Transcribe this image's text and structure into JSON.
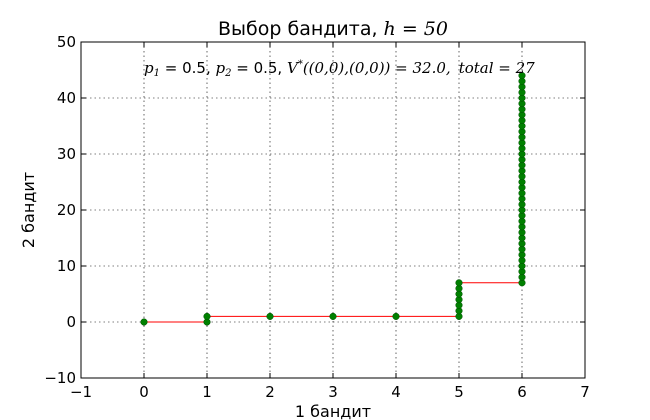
{
  "chart_data": {
    "type": "scatter",
    "title_prefix": "Выбор бандита, ",
    "title_math": "h",
    "title_eq": " = 50",
    "xlabel": "1 бандит",
    "ylabel": "2 бандит",
    "annotation": {
      "p1_sym": "p",
      "p1_sub": "1",
      "p1_val": " = 0.5, ",
      "p2_sym": "p",
      "p2_sub": "2",
      "p2_val": " = 0.5, ",
      "v_part": "V",
      "v_sup": "*",
      "v_args": "((0,0),(0,0)) = 32.0,",
      "total_label": "total",
      "total_eq": " = 27"
    },
    "xlim": [
      -1,
      7
    ],
    "ylim": [
      -10,
      50
    ],
    "xticks": [
      -1,
      0,
      1,
      2,
      3,
      4,
      5,
      6,
      7
    ],
    "yticks": [
      -10,
      0,
      10,
      20,
      30,
      40,
      50
    ],
    "grid": true,
    "colors": {
      "line": "#ff0000",
      "marker": "#008000"
    },
    "path": [
      [
        0,
        0
      ],
      [
        1,
        0
      ],
      [
        1,
        1
      ],
      [
        2,
        1
      ],
      [
        3,
        1
      ],
      [
        4,
        1
      ],
      [
        5,
        1
      ],
      [
        5,
        7
      ],
      [
        6,
        7
      ],
      [
        6,
        44
      ]
    ],
    "points": [
      [
        0,
        0
      ],
      [
        1,
        0
      ],
      [
        1,
        1
      ],
      [
        2,
        1
      ],
      [
        3,
        1
      ],
      [
        4,
        1
      ],
      [
        5,
        1
      ],
      [
        5,
        2
      ],
      [
        5,
        3
      ],
      [
        5,
        4
      ],
      [
        5,
        5
      ],
      [
        5,
        6
      ],
      [
        5,
        7
      ],
      [
        6,
        7
      ],
      [
        6,
        8
      ],
      [
        6,
        9
      ],
      [
        6,
        10
      ],
      [
        6,
        11
      ],
      [
        6,
        12
      ],
      [
        6,
        13
      ],
      [
        6,
        14
      ],
      [
        6,
        15
      ],
      [
        6,
        16
      ],
      [
        6,
        17
      ],
      [
        6,
        18
      ],
      [
        6,
        19
      ],
      [
        6,
        20
      ],
      [
        6,
        21
      ],
      [
        6,
        22
      ],
      [
        6,
        23
      ],
      [
        6,
        24
      ],
      [
        6,
        25
      ],
      [
        6,
        26
      ],
      [
        6,
        27
      ],
      [
        6,
        28
      ],
      [
        6,
        29
      ],
      [
        6,
        30
      ],
      [
        6,
        31
      ],
      [
        6,
        32
      ],
      [
        6,
        33
      ],
      [
        6,
        34
      ],
      [
        6,
        35
      ],
      [
        6,
        36
      ],
      [
        6,
        37
      ],
      [
        6,
        38
      ],
      [
        6,
        39
      ],
      [
        6,
        40
      ],
      [
        6,
        41
      ],
      [
        6,
        42
      ],
      [
        6,
        43
      ],
      [
        6,
        44
      ]
    ]
  }
}
